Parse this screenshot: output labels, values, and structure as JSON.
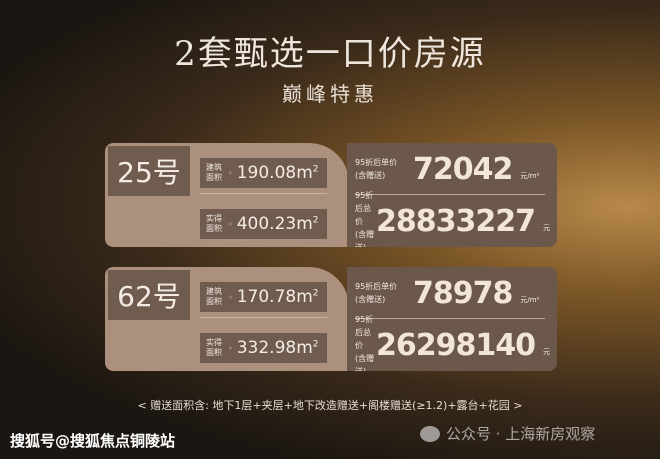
{
  "title": "2套甄选一口价房源",
  "subtitle": "巅峰特惠",
  "units": [
    {
      "number": "25号",
      "build_label": "建筑面积",
      "build_area": "190.08",
      "actual_label": "实得面积",
      "actual_area": "400.23",
      "area_unit": "m",
      "unit_price_label_1": "95折后单价",
      "unit_price_label_2": "(含赠送)",
      "unit_price": "72042",
      "unit_price_unit": "元/m²",
      "total_label_1": "95折后总价",
      "total_label_2": "(含赠送)",
      "total_price": "28833227",
      "total_unit": "元"
    },
    {
      "number": "62号",
      "build_label": "建筑面积",
      "build_area": "170.78",
      "actual_label": "实得面积",
      "actual_area": "332.98",
      "area_unit": "m",
      "unit_price_label_1": "95折后单价",
      "unit_price_label_2": "(含赠送)",
      "unit_price": "78978",
      "unit_price_unit": "元/m²",
      "total_label_1": "95折后总价",
      "total_label_2": "(含赠送)",
      "total_price": "26298140",
      "total_unit": "元"
    }
  ],
  "note": "< 赠送面积含: 地下1层+夹层+地下改造赠送+阁楼赠送(≥1.2)+露台+花园 >",
  "watermark_left": "搜狐号@搜狐焦点铜陵站",
  "watermark_right": "公众号 · 上海新房观察"
}
